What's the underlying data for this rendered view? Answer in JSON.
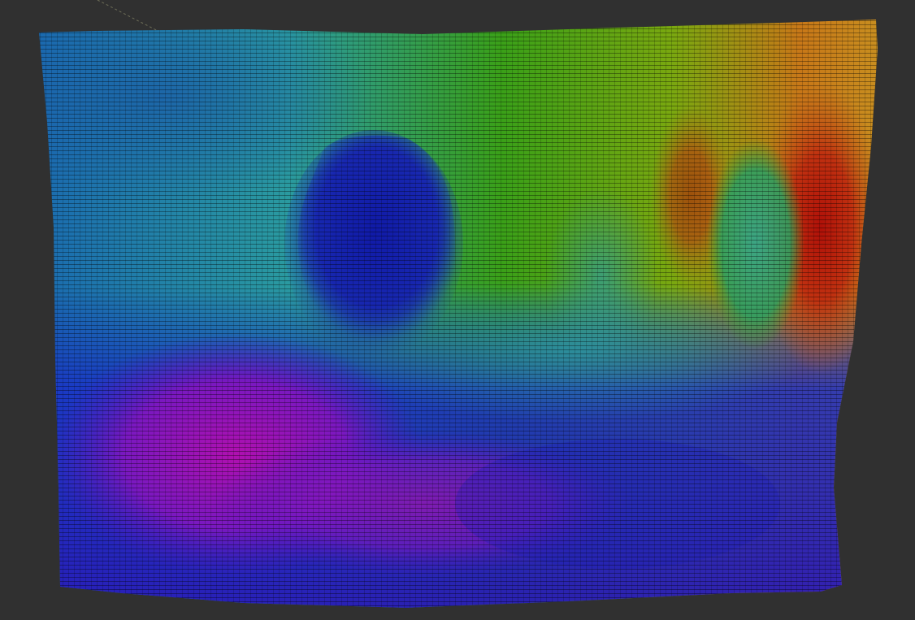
{
  "viewer": {
    "background_color": "#303030",
    "axis_line_color": "#8a8a6a"
  },
  "point_cloud": {
    "colormap": "rainbow",
    "colormap_stops": [
      "#8a0aa8",
      "#3a10c8",
      "#1030c0",
      "#1a8ab0",
      "#28b090",
      "#3aa018",
      "#9aa008",
      "#c86010",
      "#b01008"
    ],
    "style": "voxel-grid"
  }
}
